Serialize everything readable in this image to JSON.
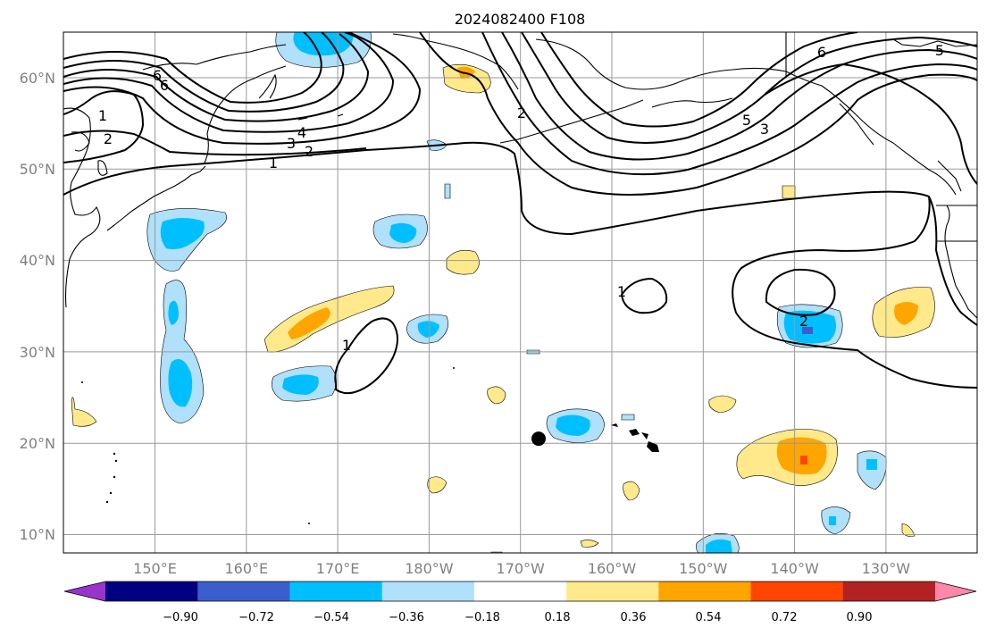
{
  "title": "2024082400 F108",
  "map": {
    "projection": "Plate Carree, Pacific-centered",
    "lon_range_deg_east": [
      140,
      240
    ],
    "lat_range_deg_north": [
      8,
      65
    ],
    "x_ticks": [
      "150°E",
      "160°E",
      "170°E",
      "180°W",
      "170°W",
      "160°W",
      "150°W",
      "140°W",
      "130°W"
    ],
    "y_ticks": [
      "10°N",
      "20°N",
      "30°N",
      "40°N",
      "50°N",
      "60°N"
    ],
    "grid": true
  },
  "contour_labels": [
    "1",
    "2",
    "3",
    "4",
    "6",
    "6",
    "1",
    "2",
    "2",
    "5",
    "3",
    "6",
    "5",
    "1",
    "1",
    "2"
  ],
  "marker": {
    "name": "storm-center",
    "lon_deg_east": 192.0,
    "lat_deg_north": 20.5,
    "color": "#000000"
  },
  "colorbar": {
    "colors": [
      "#9933cc",
      "#000080",
      "#3a5fcd",
      "#00bfff",
      "#b0e0fa",
      "#ffffff",
      "#ffe98a",
      "#ffa500",
      "#ff4500",
      "#b22222",
      "#ff88aa"
    ],
    "labels": [
      "−0.90",
      "−0.72",
      "−0.54",
      "−0.36",
      "−0.18",
      "0.18",
      "0.36",
      "0.54",
      "0.72",
      "0.90"
    ],
    "extend": "both"
  },
  "shading_levels": [
    -0.9,
    -0.72,
    -0.54,
    -0.36,
    -0.18,
    0.18,
    0.36,
    0.54,
    0.72,
    0.9
  ]
}
